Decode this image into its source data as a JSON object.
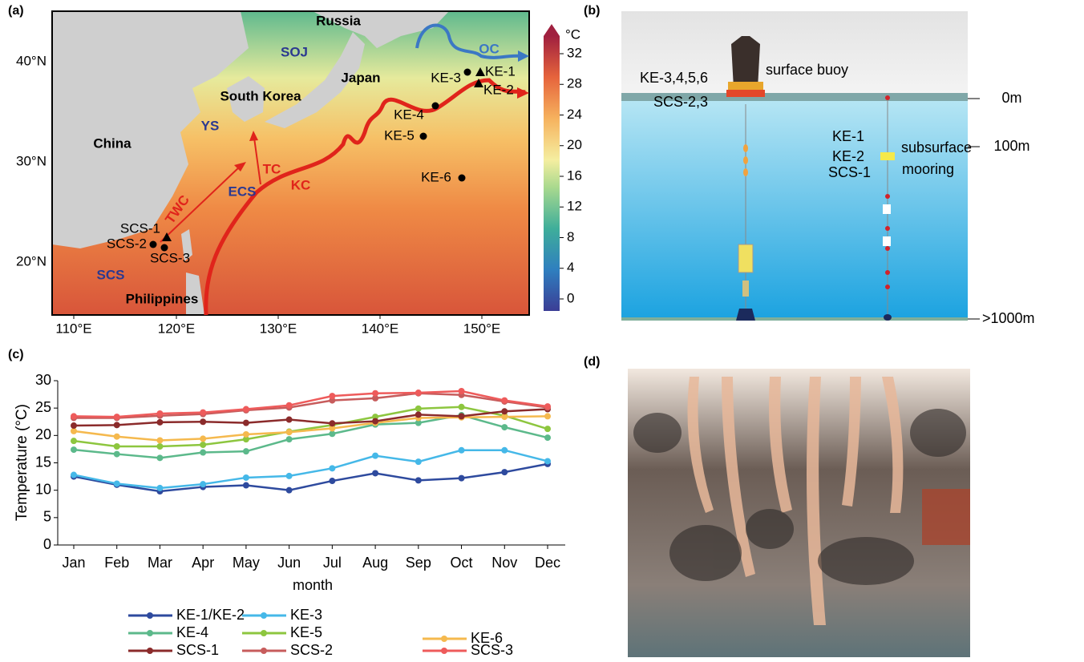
{
  "panel_labels": [
    "(a)",
    "(b)",
    "(c)",
    "(d)"
  ],
  "map": {
    "lat_labels": [
      "40°N",
      "30°N",
      "20°N"
    ],
    "lon_labels": [
      "110°E",
      "120°E",
      "130°E",
      "140°E",
      "150°E"
    ],
    "colorbar": {
      "unit": "°C",
      "ticks": [
        0,
        4,
        8,
        12,
        16,
        20,
        24,
        28,
        32
      ],
      "lim": [
        0,
        32
      ]
    },
    "regions": [
      "Russia",
      "SOJ",
      "South Korea",
      "Japan",
      "China",
      "YS",
      "ECS",
      "SCS",
      "Philippines"
    ],
    "currents": [
      "OC",
      "TWC",
      "TC",
      "KC"
    ],
    "stations": [
      "KE-1",
      "KE-2",
      "KE-3",
      "KE-4",
      "KE-5",
      "KE-6",
      "SCS-1",
      "SCS-2",
      "SCS-3"
    ]
  },
  "diagram": {
    "buoy_label": "KE-3,4,5,6",
    "buoy_name": "surface buoy",
    "buoy_label2": "SCS-2,3",
    "mooring_labels": [
      "KE-1",
      "KE-2",
      "SCS-1"
    ],
    "mooring_name": [
      "subsurface",
      "mooring"
    ],
    "depths": [
      "0m",
      "100m",
      ">1000m"
    ]
  },
  "chart_data": {
    "type": "line",
    "ylabel": "Temperature (°C)",
    "xlabel": "month",
    "categories": [
      "Jan",
      "Feb",
      "Mar",
      "Apr",
      "May",
      "Jun",
      "Jul",
      "Aug",
      "Sep",
      "Oct",
      "Nov",
      "Dec"
    ],
    "ylim": [
      0,
      30
    ],
    "yticks": [
      0,
      5,
      10,
      15,
      20,
      25,
      30
    ],
    "series": [
      {
        "name": "KE-1/KE-2",
        "color": "#2e4a9e",
        "values": [
          12.5,
          11,
          9.8,
          10.6,
          10.9,
          10,
          11.7,
          13.1,
          11.8,
          12.2,
          13.3,
          14.8
        ]
      },
      {
        "name": "KE-3",
        "color": "#45b8e8",
        "values": [
          12.8,
          11.2,
          10.4,
          11.1,
          12.3,
          12.6,
          14,
          16.3,
          15.2,
          17.3,
          17.3,
          15.3
        ]
      },
      {
        "name": "KE-4",
        "color": "#5cb98b",
        "values": [
          17.4,
          16.6,
          15.9,
          16.9,
          17.1,
          19.3,
          20.3,
          22,
          22.3,
          23.7,
          21.5,
          19.6
        ]
      },
      {
        "name": "KE-5",
        "color": "#8dc63f",
        "values": [
          19,
          18,
          18,
          18.3,
          19.3,
          20.7,
          21.9,
          23.4,
          24.9,
          25.2,
          23.6,
          21.2
        ]
      },
      {
        "name": "KE-6",
        "color": "#f5b94e",
        "values": [
          20.8,
          19.8,
          19.1,
          19.4,
          20.2,
          20.6,
          21.3,
          22.3,
          23.2,
          23.3,
          23.4,
          23.5
        ]
      },
      {
        "name": "SCS-1",
        "color": "#8b2b2b",
        "values": [
          21.8,
          21.9,
          22.4,
          22.5,
          22.3,
          22.9,
          22.2,
          22.6,
          23.8,
          23.5,
          24.4,
          24.8
        ]
      },
      {
        "name": "SCS-2",
        "color": "#c75c5c",
        "values": [
          23.2,
          23.2,
          23.6,
          23.9,
          24.6,
          25.1,
          26.4,
          26.8,
          27.7,
          27.4,
          26.2,
          25.1
        ]
      },
      {
        "name": "SCS-3",
        "color": "#ee5b5b",
        "values": [
          23.5,
          23.4,
          24,
          24.2,
          24.8,
          25.5,
          27.2,
          27.7,
          27.8,
          28.1,
          26.4,
          25.3
        ]
      }
    ]
  }
}
